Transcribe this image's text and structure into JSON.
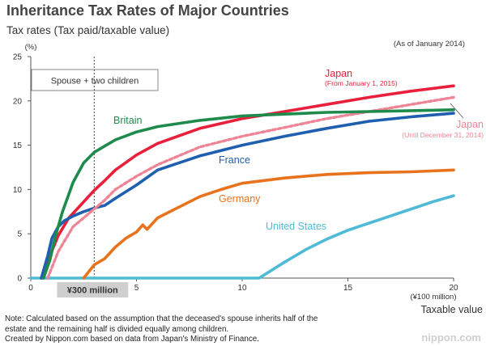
{
  "title": "Inheritance Tax Rates of Major Countries",
  "subtitle": "Tax rates (Tax paid/taxable value)",
  "as_of": "(As of January 2014)",
  "notes": [
    "Note: Calculated based on the assumption that the deceased's spouse inherits half of the",
    "estate and the remaining half is divided equally among children.",
    "Created by Nippon.com based on data from Japan's Ministry of Finance."
  ],
  "watermark": "nippon.com",
  "chart_data": {
    "type": "line",
    "title": "Inheritance Tax Rates of Major Countries",
    "ylabel": "Tax rates (Tax paid/taxable value)",
    "y_unit": "(%)",
    "x_unit": "(¥100 million)",
    "xlabel": "Taxable value",
    "xlim": [
      0,
      20
    ],
    "ylim": [
      0,
      25
    ],
    "x_ticks": [
      0,
      5,
      10,
      15,
      20
    ],
    "y_ticks": [
      0,
      5,
      10,
      15,
      20,
      25
    ],
    "scenario_box": "Spouse + two children",
    "reference_line": {
      "x": 3,
      "label": "¥300 million"
    },
    "grid": false,
    "series": [
      {
        "name": "Britain",
        "color": "#1e8a4c",
        "dashed": false,
        "x": [
          0.6,
          0.9,
          1.2,
          1.5,
          2.0,
          2.5,
          3.0,
          3.5,
          4.0,
          5.0,
          6.0,
          8.0,
          10.0,
          12.0,
          14.0,
          16.0,
          18.0,
          20.0
        ],
        "y": [
          0,
          2.0,
          5.0,
          7.5,
          10.8,
          13.0,
          14.2,
          14.9,
          15.6,
          16.5,
          17.1,
          17.8,
          18.3,
          18.5,
          18.7,
          18.8,
          18.9,
          19.0
        ]
      },
      {
        "name": "France",
        "color": "#1f5fb0",
        "dashed": false,
        "x": [
          0.5,
          0.8,
          1.0,
          1.3,
          1.6,
          2.0,
          2.5,
          3.0,
          3.5,
          4.0,
          5.0,
          6.0,
          8.0,
          10.0,
          12.0,
          14.0,
          16.0,
          18.0,
          20.0
        ],
        "y": [
          0,
          2.5,
          4.5,
          5.8,
          6.5,
          7.0,
          7.5,
          7.9,
          8.2,
          9.0,
          10.5,
          12.2,
          13.8,
          15.0,
          16.0,
          16.9,
          17.7,
          18.2,
          18.6
        ]
      },
      {
        "name": "Germany",
        "color": "#e8731f",
        "dashed": false,
        "x": [
          2.5,
          3.0,
          3.5,
          4.0,
          4.5,
          5.0,
          5.3,
          5.5,
          6.0,
          6.5,
          7.0,
          8.0,
          9.0,
          10.0,
          12.0,
          14.0,
          16.0,
          18.0,
          20.0
        ],
        "y": [
          0,
          1.5,
          2.2,
          3.5,
          4.5,
          5.2,
          6.0,
          5.5,
          6.8,
          7.4,
          8.0,
          9.2,
          10.0,
          10.7,
          11.3,
          11.7,
          11.9,
          12.0,
          12.2
        ]
      },
      {
        "name": "United States",
        "color": "#4fbad6",
        "dashed": false,
        "x": [
          0,
          10.8,
          12.0,
          13.0,
          14.0,
          15.0,
          16.0,
          17.0,
          18.0,
          19.0,
          20.0
        ],
        "y": [
          0,
          0,
          1.8,
          3.2,
          4.4,
          5.4,
          6.2,
          7.0,
          7.8,
          8.6,
          9.3
        ]
      },
      {
        "name": "Japan",
        "label_sub": "(From January 1, 2015)",
        "color": "#e8203b",
        "dashed": false,
        "x": [
          0.5,
          0.9,
          1.3,
          1.8,
          2.5,
          3.0,
          3.5,
          4.0,
          5.0,
          6.0,
          8.0,
          10.0,
          12.0,
          14.0,
          16.0,
          18.0,
          20.0
        ],
        "y": [
          0,
          2.5,
          4.8,
          6.8,
          8.6,
          9.9,
          11.0,
          12.2,
          13.9,
          15.2,
          16.9,
          18.0,
          18.8,
          19.6,
          20.4,
          21.1,
          21.7
        ]
      },
      {
        "name": "Japan",
        "label_sub": "(Until December 31, 2014)",
        "color": "#ee8596",
        "dashed": true,
        "x": [
          0.8,
          1.3,
          2.0,
          2.5,
          3.0,
          3.5,
          4.0,
          5.0,
          6.0,
          8.0,
          10.0,
          12.0,
          14.0,
          16.0,
          18.0,
          20.0
        ],
        "y": [
          0,
          3.0,
          5.8,
          6.8,
          7.8,
          8.8,
          10.0,
          11.5,
          12.8,
          14.8,
          16.0,
          17.0,
          18.0,
          18.8,
          19.6,
          20.4
        ]
      }
    ]
  }
}
